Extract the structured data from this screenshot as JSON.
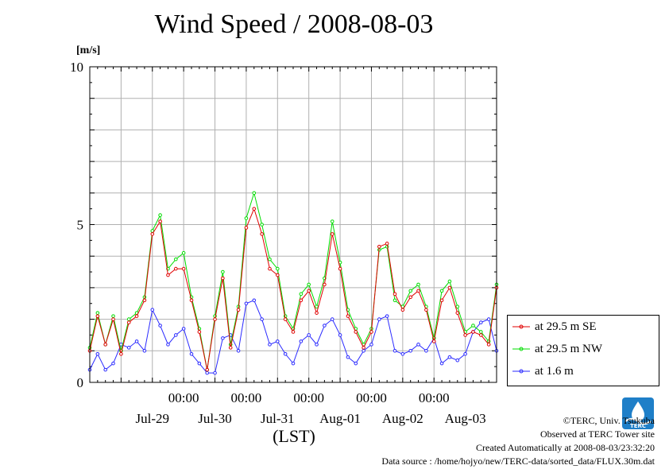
{
  "title": "Wind Speed / 2008-08-03",
  "unit": "[m/s]",
  "xlabel": "(LST)",
  "credits": {
    "copyright": "©TERC, Univ. Tsukuba",
    "observed": "Observed at TERC Tower site",
    "created": "Created Automatically at 2008-08-03/23:32:20",
    "source": "Data source : /home/hojyo/new/TERC-data/sorted_data/FLUX.30m.dat"
  },
  "logo": {
    "text": "TERC",
    "color": "#1f7fc8"
  },
  "chart_data": {
    "type": "line",
    "title": "Wind Speed / 2008-08-03",
    "ylabel": "[m/s]",
    "xlabel": "(LST)",
    "ylim": [
      0,
      10
    ],
    "xlim": [
      "2008-07-28 12:00",
      "2008-08-04 00:00"
    ],
    "y_ticks": [
      "0",
      "5",
      "10"
    ],
    "x_time_ticks": [
      "00:00",
      "00:00",
      "00:00",
      "00:00",
      "00:00"
    ],
    "x_day_labels": [
      "Jul-29",
      "Jul-30",
      "Jul-31",
      "Aug-01",
      "Aug-02",
      "Aug-03"
    ],
    "grid": true,
    "legend_position": "outside-right",
    "series": [
      {
        "name": "at 29.5 m SE",
        "color": "#e00000",
        "points": [
          [
            "07-28 12:00",
            1.0
          ],
          [
            "07-28 15:00",
            2.1
          ],
          [
            "07-28 18:00",
            1.2
          ],
          [
            "07-28 21:00",
            2.0
          ],
          [
            "07-29 00:00",
            0.9
          ],
          [
            "07-29 03:00",
            1.9
          ],
          [
            "07-29 06:00",
            2.1
          ],
          [
            "07-29 09:00",
            2.6
          ],
          [
            "07-29 12:00",
            4.7
          ],
          [
            "07-29 15:00",
            5.1
          ],
          [
            "07-29 18:00",
            3.4
          ],
          [
            "07-29 21:00",
            3.6
          ],
          [
            "07-30 00:00",
            3.6
          ],
          [
            "07-30 03:00",
            2.6
          ],
          [
            "07-30 06:00",
            1.6
          ],
          [
            "07-30 09:00",
            0.4
          ],
          [
            "07-30 12:00",
            2.0
          ],
          [
            "07-30 15:00",
            3.3
          ],
          [
            "07-30 18:00",
            1.1
          ],
          [
            "07-30 21:00",
            2.3
          ],
          [
            "07-31 00:00",
            4.9
          ],
          [
            "07-31 03:00",
            5.5
          ],
          [
            "07-31 06:00",
            4.7
          ],
          [
            "07-31 09:00",
            3.6
          ],
          [
            "07-31 12:00",
            3.4
          ],
          [
            "07-31 15:00",
            2.0
          ],
          [
            "07-31 18:00",
            1.6
          ],
          [
            "07-31 21:00",
            2.6
          ],
          [
            "08-01 00:00",
            2.9
          ],
          [
            "08-01 03:00",
            2.2
          ],
          [
            "08-01 06:00",
            3.1
          ],
          [
            "08-01 09:00",
            4.7
          ],
          [
            "08-01 12:00",
            3.6
          ],
          [
            "08-01 15:00",
            2.1
          ],
          [
            "08-01 18:00",
            1.6
          ],
          [
            "08-01 21:00",
            1.1
          ],
          [
            "08-02 00:00",
            1.6
          ],
          [
            "08-02 03:00",
            4.3
          ],
          [
            "08-02 06:00",
            4.4
          ],
          [
            "08-02 09:00",
            2.8
          ],
          [
            "08-02 12:00",
            2.3
          ],
          [
            "08-02 15:00",
            2.7
          ],
          [
            "08-02 18:00",
            2.9
          ],
          [
            "08-02 21:00",
            2.3
          ],
          [
            "08-03 00:00",
            1.3
          ],
          [
            "08-03 03:00",
            2.6
          ],
          [
            "08-03 06:00",
            3.0
          ],
          [
            "08-03 09:00",
            2.2
          ],
          [
            "08-03 12:00",
            1.5
          ],
          [
            "08-03 15:00",
            1.6
          ],
          [
            "08-03 18:00",
            1.5
          ],
          [
            "08-03 21:00",
            1.2
          ],
          [
            "08-04 00:00",
            3.0
          ]
        ]
      },
      {
        "name": "at 29.5 m NW",
        "color": "#00dd00",
        "points": [
          [
            "07-28 12:00",
            1.1
          ],
          [
            "07-28 15:00",
            2.2
          ],
          [
            "07-28 18:00",
            1.2
          ],
          [
            "07-28 21:00",
            2.1
          ],
          [
            "07-29 00:00",
            1.0
          ],
          [
            "07-29 03:00",
            2.0
          ],
          [
            "07-29 06:00",
            2.2
          ],
          [
            "07-29 09:00",
            2.7
          ],
          [
            "07-29 12:00",
            4.8
          ],
          [
            "07-29 15:00",
            5.3
          ],
          [
            "07-29 18:00",
            3.6
          ],
          [
            "07-29 21:00",
            3.9
          ],
          [
            "07-30 00:00",
            4.1
          ],
          [
            "07-30 03:00",
            2.7
          ],
          [
            "07-30 06:00",
            1.7
          ],
          [
            "07-30 09:00",
            0.4
          ],
          [
            "07-30 12:00",
            2.1
          ],
          [
            "07-30 15:00",
            3.5
          ],
          [
            "07-30 18:00",
            1.2
          ],
          [
            "07-30 21:00",
            2.4
          ],
          [
            "07-31 00:00",
            5.2
          ],
          [
            "07-31 03:00",
            6.0
          ],
          [
            "07-31 06:00",
            5.0
          ],
          [
            "07-31 09:00",
            3.9
          ],
          [
            "07-31 12:00",
            3.6
          ],
          [
            "07-31 15:00",
            2.1
          ],
          [
            "07-31 18:00",
            1.7
          ],
          [
            "07-31 21:00",
            2.8
          ],
          [
            "08-01 00:00",
            3.1
          ],
          [
            "08-01 03:00",
            2.4
          ],
          [
            "08-01 06:00",
            3.3
          ],
          [
            "08-01 09:00",
            5.1
          ],
          [
            "08-01 12:00",
            3.8
          ],
          [
            "08-01 15:00",
            2.3
          ],
          [
            "08-01 18:00",
            1.7
          ],
          [
            "08-01 21:00",
            1.2
          ],
          [
            "08-02 00:00",
            1.7
          ],
          [
            "08-02 03:00",
            4.2
          ],
          [
            "08-02 06:00",
            4.3
          ],
          [
            "08-02 09:00",
            2.6
          ],
          [
            "08-02 12:00",
            2.4
          ],
          [
            "08-02 15:00",
            2.9
          ],
          [
            "08-02 18:00",
            3.1
          ],
          [
            "08-02 21:00",
            2.4
          ],
          [
            "08-03 00:00",
            1.4
          ],
          [
            "08-03 03:00",
            2.9
          ],
          [
            "08-03 06:00",
            3.2
          ],
          [
            "08-03 09:00",
            2.4
          ],
          [
            "08-03 12:00",
            1.6
          ],
          [
            "08-03 15:00",
            1.8
          ],
          [
            "08-03 18:00",
            1.6
          ],
          [
            "08-03 21:00",
            1.3
          ],
          [
            "08-04 00:00",
            3.1
          ]
        ]
      },
      {
        "name": "at 1.6 m",
        "color": "#2a2aff",
        "points": [
          [
            "07-28 12:00",
            0.4
          ],
          [
            "07-28 15:00",
            0.9
          ],
          [
            "07-28 18:00",
            0.4
          ],
          [
            "07-28 21:00",
            0.6
          ],
          [
            "07-29 00:00",
            1.2
          ],
          [
            "07-29 03:00",
            1.1
          ],
          [
            "07-29 06:00",
            1.3
          ],
          [
            "07-29 09:00",
            1.0
          ],
          [
            "07-29 12:00",
            2.3
          ],
          [
            "07-29 15:00",
            1.8
          ],
          [
            "07-29 18:00",
            1.2
          ],
          [
            "07-29 21:00",
            1.5
          ],
          [
            "07-30 00:00",
            1.7
          ],
          [
            "07-30 03:00",
            0.9
          ],
          [
            "07-30 06:00",
            0.6
          ],
          [
            "07-30 09:00",
            0.3
          ],
          [
            "07-30 12:00",
            0.3
          ],
          [
            "07-30 15:00",
            1.4
          ],
          [
            "07-30 18:00",
            1.5
          ],
          [
            "07-30 21:00",
            1.0
          ],
          [
            "07-31 00:00",
            2.5
          ],
          [
            "07-31 03:00",
            2.6
          ],
          [
            "07-31 06:00",
            2.0
          ],
          [
            "07-31 09:00",
            1.2
          ],
          [
            "07-31 12:00",
            1.3
          ],
          [
            "07-31 15:00",
            0.9
          ],
          [
            "07-31 18:00",
            0.6
          ],
          [
            "07-31 21:00",
            1.3
          ],
          [
            "08-01 00:00",
            1.5
          ],
          [
            "08-01 03:00",
            1.2
          ],
          [
            "08-01 06:00",
            1.8
          ],
          [
            "08-01 09:00",
            2.0
          ],
          [
            "08-01 12:00",
            1.5
          ],
          [
            "08-01 15:00",
            0.8
          ],
          [
            "08-01 18:00",
            0.6
          ],
          [
            "08-01 21:00",
            1.0
          ],
          [
            "08-02 00:00",
            1.2
          ],
          [
            "08-02 03:00",
            2.0
          ],
          [
            "08-02 06:00",
            2.1
          ],
          [
            "08-02 09:00",
            1.0
          ],
          [
            "08-02 12:00",
            0.9
          ],
          [
            "08-02 15:00",
            1.0
          ],
          [
            "08-02 18:00",
            1.2
          ],
          [
            "08-02 21:00",
            1.0
          ],
          [
            "08-03 00:00",
            1.4
          ],
          [
            "08-03 03:00",
            0.6
          ],
          [
            "08-03 06:00",
            0.8
          ],
          [
            "08-03 09:00",
            0.7
          ],
          [
            "08-03 12:00",
            0.9
          ],
          [
            "08-03 15:00",
            1.6
          ],
          [
            "08-03 18:00",
            1.9
          ],
          [
            "08-03 21:00",
            2.0
          ],
          [
            "08-04 00:00",
            1.0
          ]
        ]
      }
    ]
  }
}
